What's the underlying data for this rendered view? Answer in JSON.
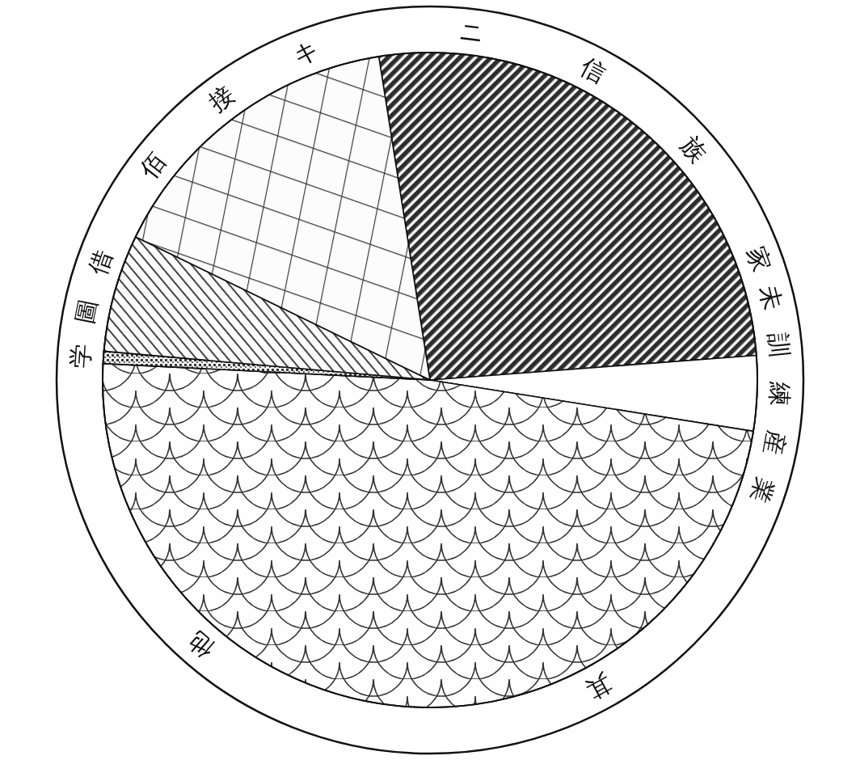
{
  "chart_data": {
    "type": "pie",
    "categories": [
      "ニ信族家",
      "未訓練産業",
      "其他",
      "学",
      "圖借",
      "佰接キ"
    ],
    "values": [
      26.3,
      3.7,
      48.3,
      0.6,
      5.8,
      15.3
    ]
  }
}
